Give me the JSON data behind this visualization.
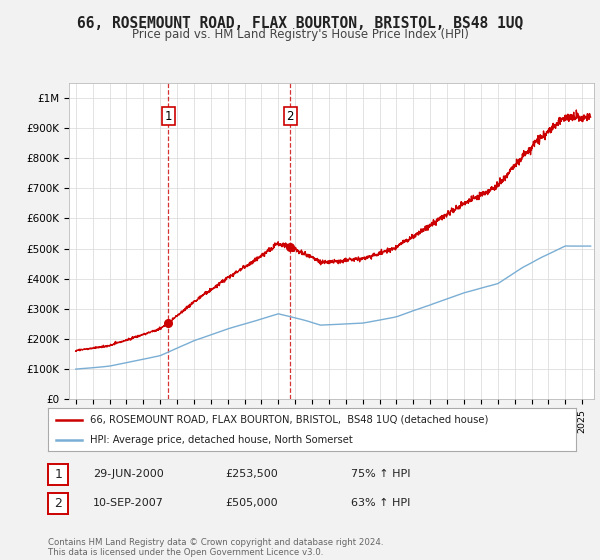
{
  "title": "66, ROSEMOUNT ROAD, FLAX BOURTON, BRISTOL, BS48 1UQ",
  "subtitle": "Price paid vs. HM Land Registry's House Price Index (HPI)",
  "ylim": [
    0,
    1050000
  ],
  "yticks": [
    0,
    100000,
    200000,
    300000,
    400000,
    500000,
    600000,
    700000,
    800000,
    900000,
    1000000
  ],
  "ytick_labels": [
    "£0",
    "£100K",
    "£200K",
    "£300K",
    "£400K",
    "£500K",
    "£600K",
    "£700K",
    "£800K",
    "£900K",
    "£1M"
  ],
  "background_color": "#f2f2f2",
  "plot_bg_color": "#ffffff",
  "red_line_color": "#cc0000",
  "blue_line_color": "#7aaed4",
  "sale1_x": 2000.49,
  "sale1_price": 253500,
  "sale2_x": 2007.71,
  "sale2_price": 505000,
  "legend_red_label": "66, ROSEMOUNT ROAD, FLAX BOURTON, BRISTOL,  BS48 1UQ (detached house)",
  "legend_blue_label": "HPI: Average price, detached house, North Somerset",
  "annot1_label": "1",
  "annot1_date": "29-JUN-2000",
  "annot1_price": "£253,500",
  "annot1_hpi": "75% ↑ HPI",
  "annot2_label": "2",
  "annot2_date": "10-SEP-2007",
  "annot2_price": "£505,000",
  "annot2_hpi": "63% ↑ HPI",
  "footer": "Contains HM Land Registry data © Crown copyright and database right 2024.\nThis data is licensed under the Open Government Licence v3.0."
}
